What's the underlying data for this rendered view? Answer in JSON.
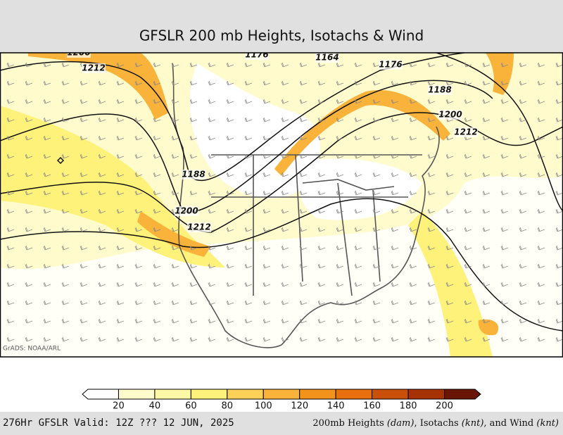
{
  "title": "GFSLR 200 mb Heights, Isotachs & Wind",
  "credit": "GrADS: NOAA/ARL",
  "contour_labels": [
    "1200",
    "1212",
    "1176",
    "1164",
    "1176",
    "1188",
    "1200",
    "1212",
    "1188",
    "1200",
    "1212"
  ],
  "colorbar": {
    "colors": [
      "#ffffff",
      "#fffbcc",
      "#fff7a8",
      "#fff27a",
      "#fcd15a",
      "#f9b23a",
      "#f4921e",
      "#e8700e",
      "#c9500a",
      "#a63204",
      "#6a1606"
    ],
    "labels": [
      20,
      40,
      60,
      80,
      100,
      120,
      140,
      160,
      180,
      200
    ]
  },
  "footer": {
    "left": "276Hr GFSLR Valid: 12Z ??? 12 JUN, 2025",
    "right": [
      "200mb Heights ",
      "(dam)",
      ", Isotachs ",
      "(knt)",
      ", and Wind ",
      "(knt)"
    ]
  }
}
